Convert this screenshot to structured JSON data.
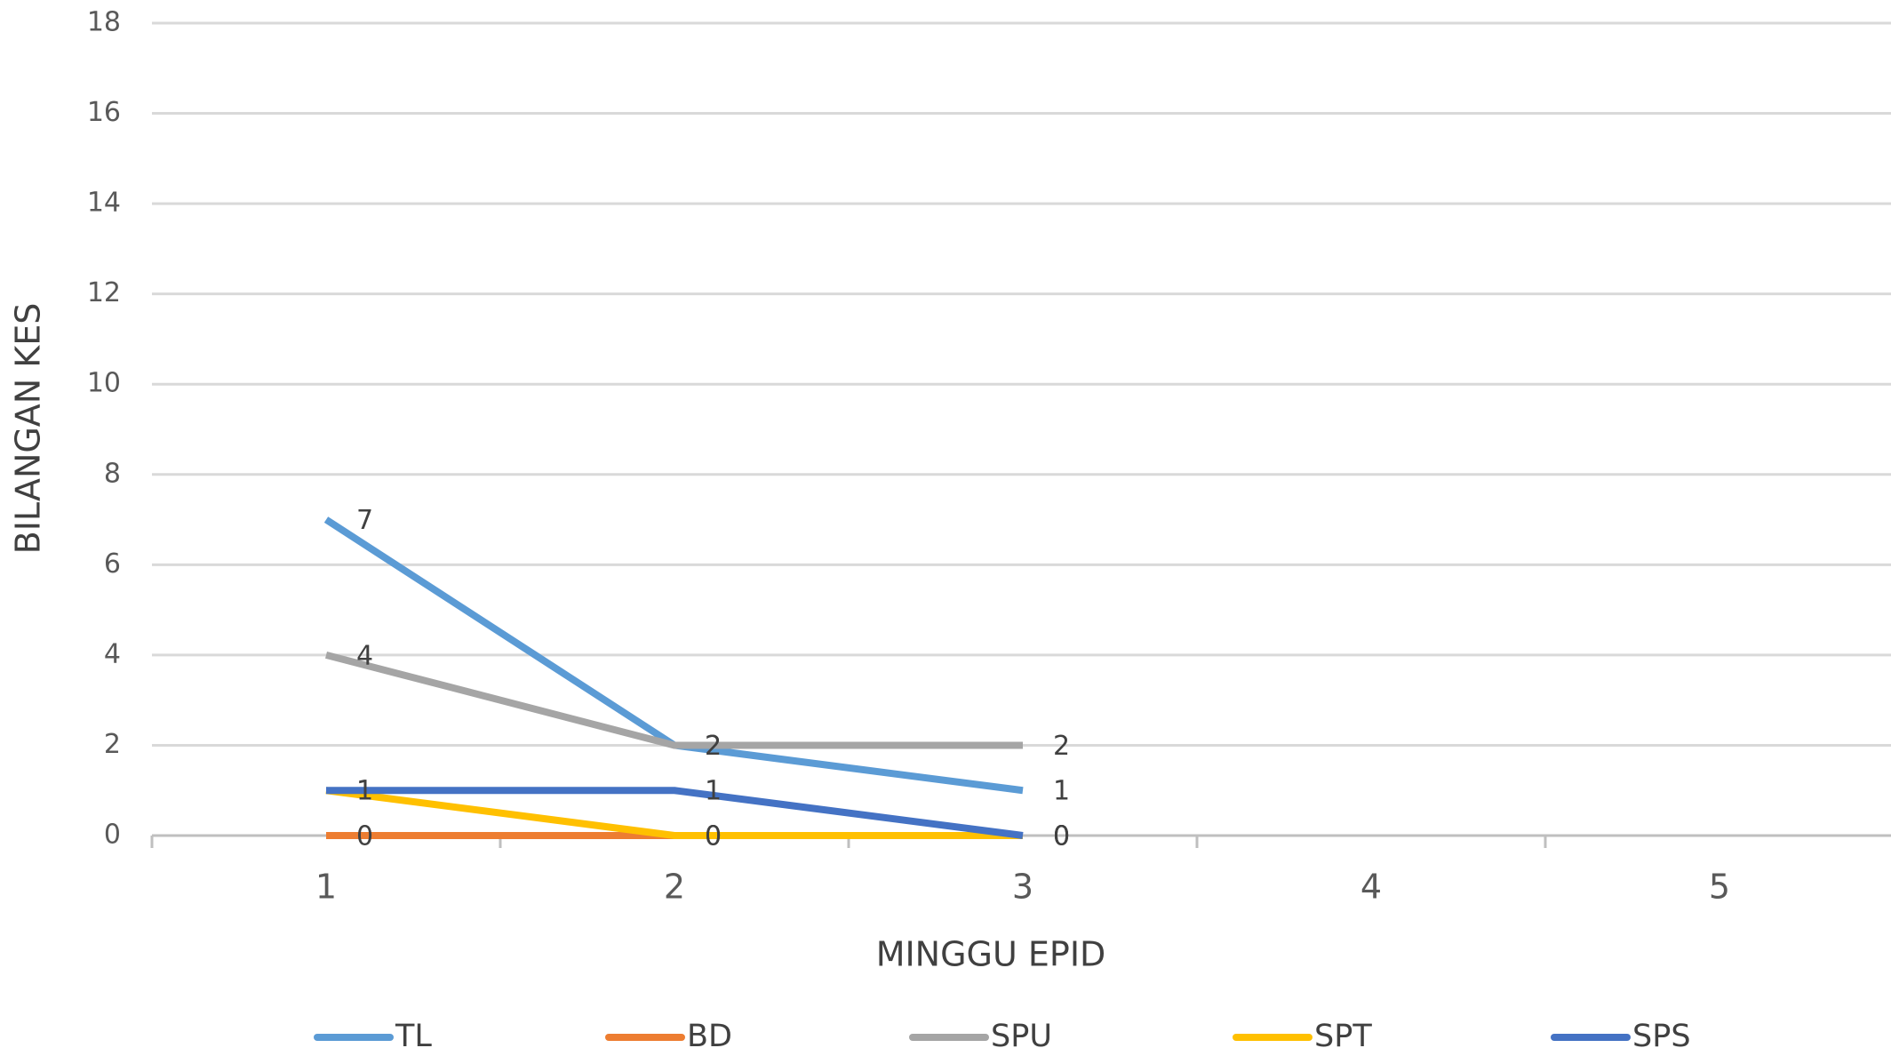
{
  "chart_data": {
    "type": "line",
    "x_label": "MINGGU EPID",
    "y_label": "BILANGAN KES",
    "categories": [
      "1",
      "2",
      "3",
      "4",
      "5"
    ],
    "series": [
      {
        "name": "TL",
        "color": "#5B9BD5",
        "values": [
          7,
          2,
          1,
          null,
          null
        ]
      },
      {
        "name": "BD",
        "color": "#ED7D31",
        "values": [
          0,
          0,
          0,
          null,
          null
        ]
      },
      {
        "name": "SPU",
        "color": "#A5A5A5",
        "values": [
          4,
          2,
          2,
          null,
          null
        ]
      },
      {
        "name": "SPT",
        "color": "#FFC000",
        "values": [
          1,
          0,
          0,
          null,
          null
        ]
      },
      {
        "name": "SPS",
        "color": "#4472C4",
        "values": [
          1,
          1,
          0,
          null,
          null
        ]
      }
    ],
    "ylim": [
      0,
      18
    ],
    "yticks": [
      0,
      2,
      4,
      6,
      8,
      10,
      12,
      14,
      16,
      18
    ],
    "grid": true,
    "legend": "bottom",
    "data_labels": true
  }
}
